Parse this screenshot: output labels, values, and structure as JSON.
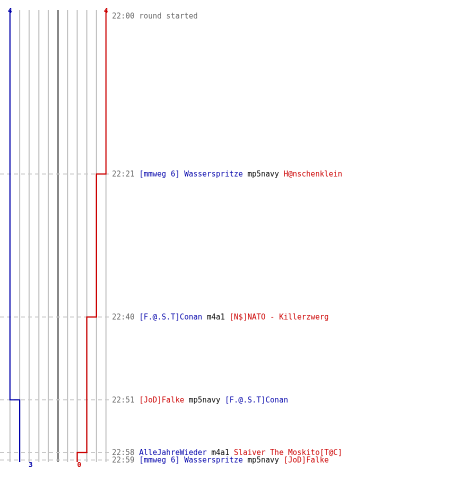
{
  "colors": {
    "blue": "#0000aa",
    "red": "#cc0000",
    "time": "#666666",
    "weapon": "#000000",
    "track_grid": "#bbbbbb",
    "track_center": "#555555",
    "dash": "#c8c8c8"
  },
  "chart_data": {
    "type": "line",
    "tracks": 10,
    "score_start": {
      "blue": "4",
      "red": "4"
    },
    "score_end": {
      "blue": "3",
      "red": "0"
    },
    "blue_lives": [
      4,
      4,
      4,
      4,
      3,
      3,
      3
    ],
    "red_lives": [
      4,
      4,
      3,
      2,
      2,
      1,
      0
    ],
    "events": [
      {
        "time": "22:00",
        "parts": [
          {
            "text": "round started",
            "color": "time"
          }
        ]
      },
      {
        "time": "22:21",
        "parts": [
          {
            "text": "[mmweg 6] Wasserspritze",
            "color": "blue"
          },
          {
            "text": "mp5navy",
            "color": "weapon"
          },
          {
            "text": "H@nschenklein",
            "color": "red"
          }
        ]
      },
      {
        "time": "22:40",
        "parts": [
          {
            "text": "[F.@.S.T]Conan",
            "color": "blue"
          },
          {
            "text": "m4a1",
            "color": "weapon"
          },
          {
            "text": "[N$]NATO - Killerzwerg",
            "color": "red"
          }
        ]
      },
      {
        "time": "22:51",
        "parts": [
          {
            "text": "[JoD]Falke",
            "color": "red"
          },
          {
            "text": "mp5navy",
            "color": "weapon"
          },
          {
            "text": "[F.@.S.T]Conan",
            "color": "blue"
          }
        ]
      },
      {
        "time": "22:58",
        "parts": [
          {
            "text": "AlleJahreWieder",
            "color": "blue"
          },
          {
            "text": "m4a1",
            "color": "weapon"
          },
          {
            "text": "Slaiver The Moskito[T@C]",
            "color": "red"
          }
        ]
      },
      {
        "time": "22:59",
        "parts": [
          {
            "text": "[mmweg 6] Wasserspritze",
            "color": "blue"
          },
          {
            "text": "mp5navy",
            "color": "weapon"
          },
          {
            "text": "[JoD]Falke",
            "color": "red"
          }
        ]
      }
    ]
  }
}
